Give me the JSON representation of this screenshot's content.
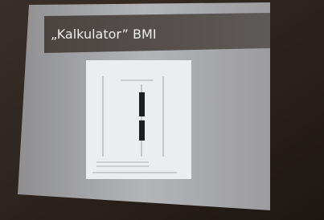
{
  "slide": {
    "title": "„Kalkulator” BMI"
  }
}
